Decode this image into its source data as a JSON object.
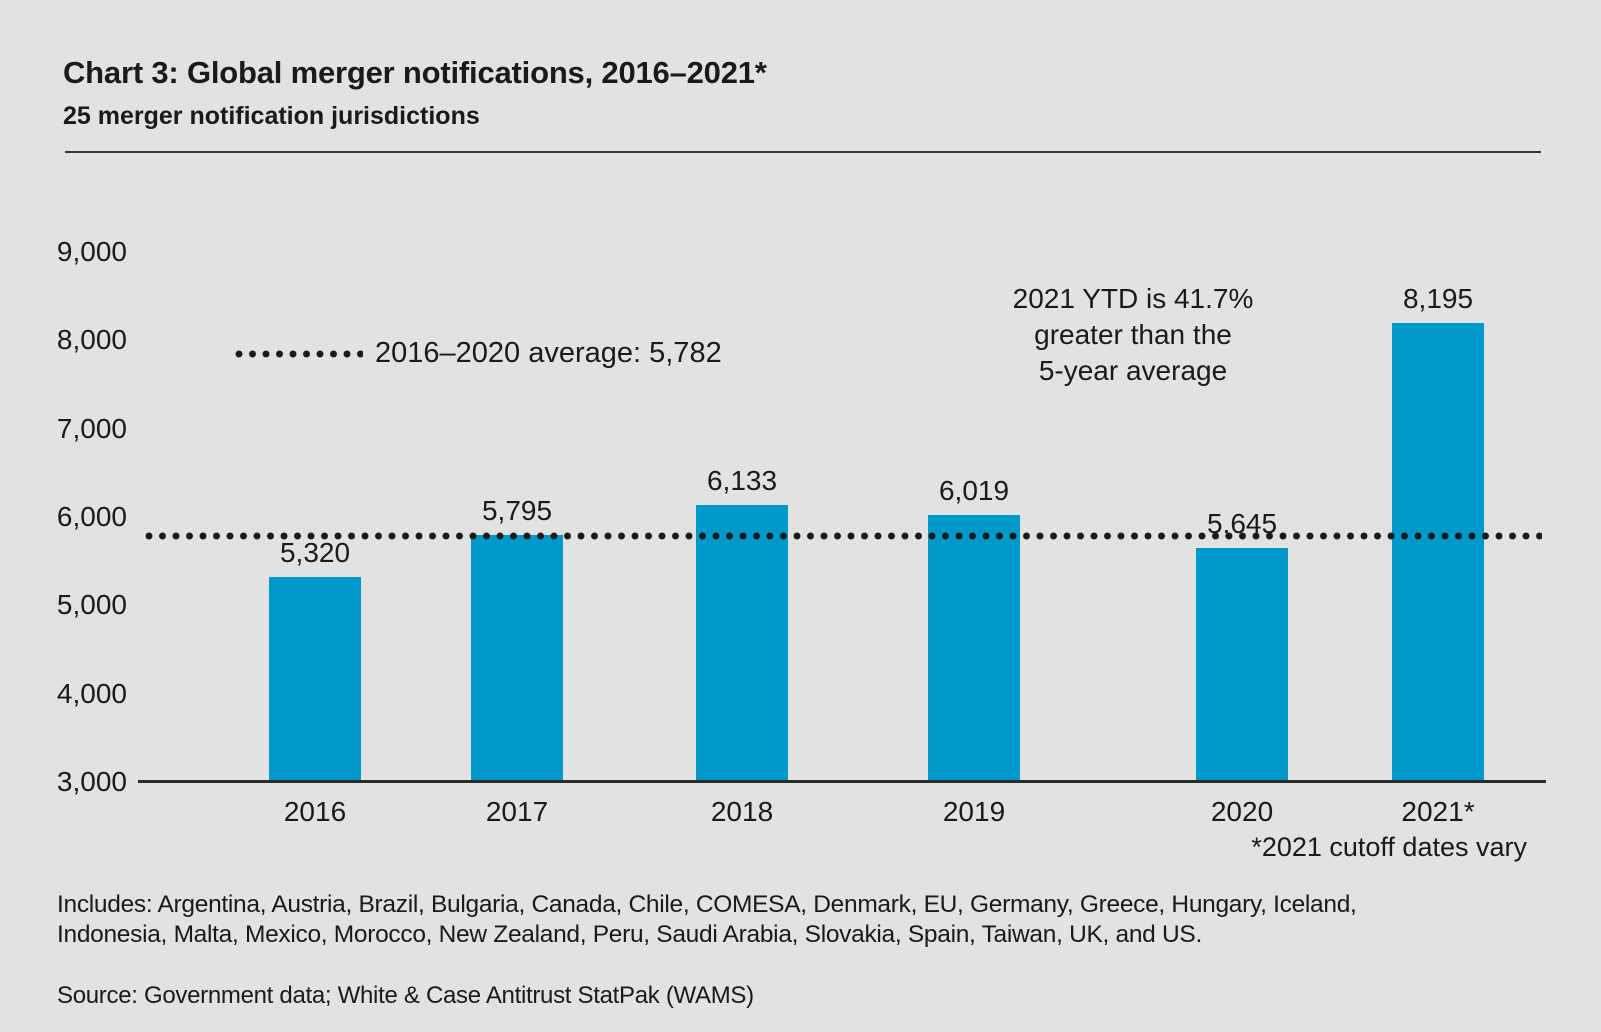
{
  "header": {
    "title": "Chart 3: Global merger notifications, 2016–2021*",
    "subtitle": "25 merger notification jurisdictions"
  },
  "chart_data": {
    "type": "bar",
    "categories": [
      "2016",
      "2017",
      "2018",
      "2019",
      "2020",
      "2021*"
    ],
    "values": [
      5320,
      5795,
      6133,
      6019,
      5645,
      8195
    ],
    "value_labels": [
      "5,320",
      "5,795",
      "6,133",
      "6,019",
      "5,645",
      "8,195"
    ],
    "ytick_values": [
      9000,
      8000,
      7000,
      6000,
      5000,
      4000,
      3000
    ],
    "ytick_labels": [
      "9,000",
      "8,000",
      "7,000",
      "6,000",
      "5,000",
      "4,000",
      "3,000"
    ],
    "ylim": [
      3000,
      9000
    ],
    "grid": false,
    "bar_color": "#0099c9",
    "average_line": {
      "value": 5782,
      "style": "dotted",
      "legend_label": "2016–2020 average: 5,782",
      "legend_position": "upper-left-inside"
    },
    "annotation": {
      "lines": [
        "2021 YTD is 41.7%",
        "greater than the",
        "5-year average"
      ]
    }
  },
  "footnotes": {
    "cutoff": "*2021 cutoff dates vary",
    "includes": "Includes: Argentina, Austria, Brazil, Bulgaria, Canada, Chile, COMESA, Denmark, EU, Germany, Greece, Hungary, Iceland, Indonesia, Malta, Mexico, Morocco,  New Zealand, Peru, Saudi Arabia, Slovakia, Spain, Taiwan, UK, and US.",
    "source": "Source: Government data; White & Case Antitrust StatPak (WAMS)"
  }
}
